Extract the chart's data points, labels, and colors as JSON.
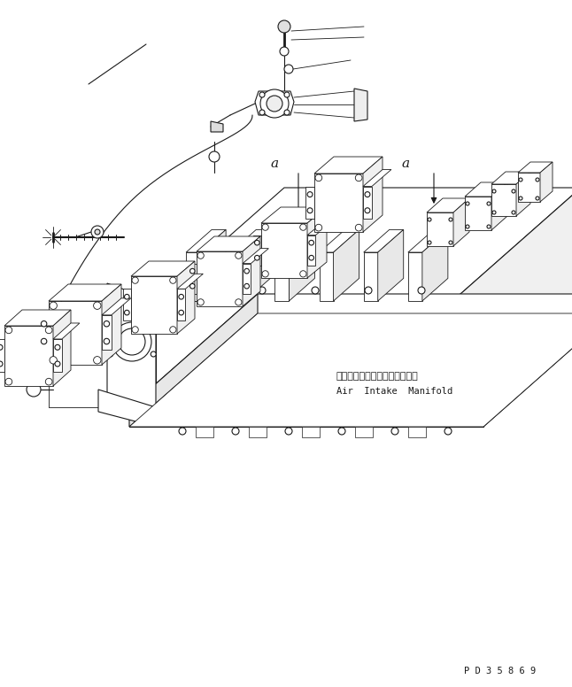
{
  "background_color": "#ffffff",
  "line_color": "#1a1a1a",
  "annotation_japanese": "エアーインテークマニホールド",
  "annotation_english": "Air  Intake  Manifold",
  "part_number": "P D 3 5 8 6 9",
  "figsize": [
    6.46,
    7.76
  ],
  "dpi": 100
}
